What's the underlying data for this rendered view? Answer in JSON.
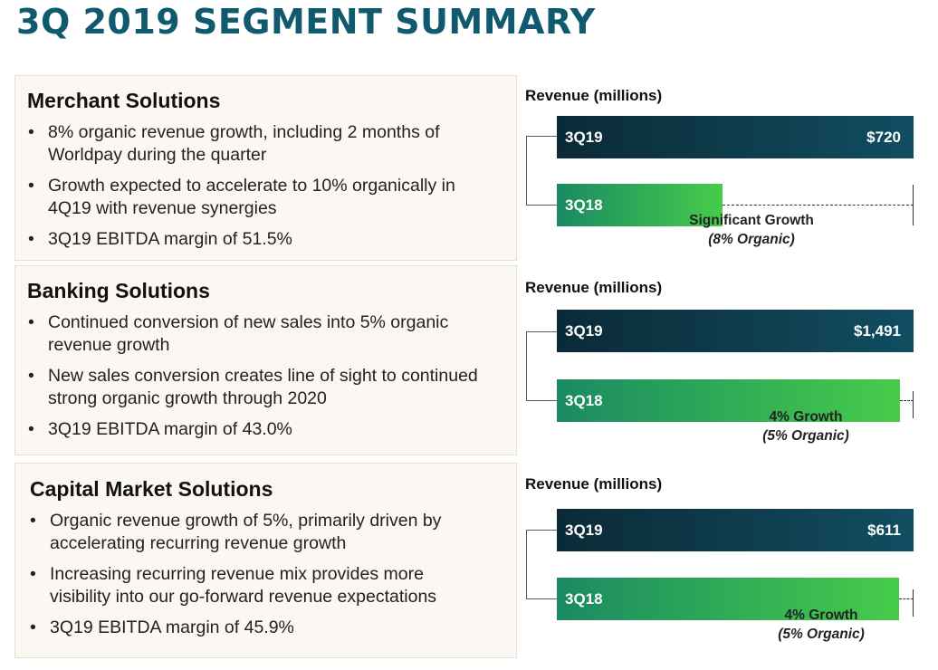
{
  "title": "3Q 2019 SEGMENT SUMMARY",
  "segments": [
    {
      "name": "Merchant Solutions",
      "bullets": [
        "8% organic revenue growth, including 2 months of Worldpay during the quarter",
        "Growth expected to accelerate to 10% organically in 4Q19 with revenue synergies",
        "3Q19 EBITDA margin of 51.5%"
      ],
      "growth_line1": "Significant Growth",
      "growth_line2": "(8% Organic)"
    },
    {
      "name": "Banking Solutions",
      "bullets": [
        "Continued conversion of new sales into 5% organic revenue growth",
        "New sales conversion creates line of sight to continued strong organic growth through 2020",
        "3Q19 EBITDA margin of 43.0%"
      ],
      "growth_line1": "4% Growth",
      "growth_line2": "(5% Organic)"
    },
    {
      "name": "Capital Market Solutions",
      "bullets": [
        "Organic revenue growth of 5%, primarily driven by accelerating recurring revenue growth",
        "Increasing recurring revenue mix provides more visibility into our go-forward revenue expectations",
        "3Q19 EBITDA margin of 45.9%"
      ],
      "growth_line1": "4% Growth",
      "growth_line2": "(5% Organic)"
    }
  ],
  "chart_data": [
    {
      "type": "bar",
      "title": "Revenue (millions)",
      "categories": [
        "3Q19",
        "3Q18"
      ],
      "values": [
        720,
        335
      ],
      "value_labels": [
        "$720",
        ""
      ]
    },
    {
      "type": "bar",
      "title": "Revenue (millions)",
      "categories": [
        "3Q19",
        "3Q18"
      ],
      "values": [
        1491,
        1433
      ],
      "value_labels": [
        "$1,491",
        ""
      ]
    },
    {
      "type": "bar",
      "title": "Revenue (millions)",
      "categories": [
        "3Q19",
        "3Q18"
      ],
      "values": [
        611,
        586
      ],
      "value_labels": [
        "$611",
        ""
      ]
    }
  ],
  "colors": {
    "title": "#0f5a6e",
    "current_bar": "#0b2a37",
    "prior_bar": "#46cc4a"
  }
}
